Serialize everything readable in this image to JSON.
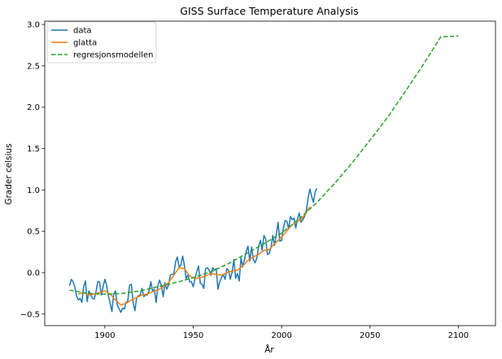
{
  "chart_data": {
    "type": "line",
    "title": "GISS Surface Temperature Analysis",
    "xlabel": "År",
    "ylabel": "Grader celsius",
    "xlim": [
      1866,
      2121
    ],
    "ylim": [
      -0.64,
      3.04
    ],
    "xticks": [
      1900,
      1950,
      2000,
      2050,
      2100
    ],
    "yticks": [
      -0.5,
      0.0,
      0.5,
      1.0,
      1.5,
      2.0,
      2.5,
      3.0
    ],
    "xtick_labels": [
      "1900",
      "1950",
      "2000",
      "2050",
      "2100"
    ],
    "ytick_labels": [
      "−0.5",
      "0.0",
      "0.5",
      "1.0",
      "1.5",
      "2.0",
      "2.5",
      "3.0"
    ],
    "grid": false,
    "legend_position": "top-left",
    "series": [
      {
        "name": "data",
        "color": "#1f77b4",
        "style": "solid",
        "x": [
          1880,
          1881,
          1882,
          1883,
          1884,
          1885,
          1886,
          1887,
          1888,
          1889,
          1890,
          1891,
          1892,
          1893,
          1894,
          1895,
          1896,
          1897,
          1898,
          1899,
          1900,
          1901,
          1902,
          1903,
          1904,
          1905,
          1906,
          1907,
          1908,
          1909,
          1910,
          1911,
          1912,
          1913,
          1914,
          1915,
          1916,
          1917,
          1918,
          1919,
          1920,
          1921,
          1922,
          1923,
          1924,
          1925,
          1926,
          1927,
          1928,
          1929,
          1930,
          1931,
          1932,
          1933,
          1934,
          1935,
          1936,
          1937,
          1938,
          1939,
          1940,
          1941,
          1942,
          1943,
          1944,
          1945,
          1946,
          1947,
          1948,
          1949,
          1950,
          1951,
          1952,
          1953,
          1954,
          1955,
          1956,
          1957,
          1958,
          1959,
          1960,
          1961,
          1962,
          1963,
          1964,
          1965,
          1966,
          1967,
          1968,
          1969,
          1970,
          1971,
          1972,
          1973,
          1974,
          1975,
          1976,
          1977,
          1978,
          1979,
          1980,
          1981,
          1982,
          1983,
          1984,
          1985,
          1986,
          1987,
          1988,
          1989,
          1990,
          1991,
          1992,
          1993,
          1994,
          1995,
          1996,
          1997,
          1998,
          1999,
          2000,
          2001,
          2002,
          2003,
          2004,
          2005,
          2006,
          2007,
          2008,
          2009,
          2010,
          2011,
          2012,
          2013,
          2014,
          2015,
          2016,
          2017,
          2018,
          2019,
          2020
        ],
        "y": [
          -0.16,
          -0.08,
          -0.11,
          -0.17,
          -0.28,
          -0.33,
          -0.31,
          -0.36,
          -0.17,
          -0.1,
          -0.35,
          -0.22,
          -0.27,
          -0.31,
          -0.32,
          -0.23,
          -0.11,
          -0.11,
          -0.27,
          -0.17,
          -0.08,
          -0.15,
          -0.28,
          -0.37,
          -0.47,
          -0.26,
          -0.22,
          -0.39,
          -0.43,
          -0.48,
          -0.43,
          -0.44,
          -0.36,
          -0.34,
          -0.15,
          -0.14,
          -0.36,
          -0.46,
          -0.3,
          -0.28,
          -0.27,
          -0.19,
          -0.29,
          -0.27,
          -0.27,
          -0.22,
          -0.11,
          -0.22,
          -0.2,
          -0.36,
          -0.16,
          -0.09,
          -0.16,
          -0.29,
          -0.12,
          -0.2,
          -0.15,
          -0.03,
          -0.02,
          -0.02,
          0.13,
          0.19,
          0.07,
          0.09,
          0.2,
          0.09,
          -0.07,
          -0.03,
          -0.11,
          -0.11,
          -0.17,
          -0.07,
          0.01,
          0.08,
          -0.13,
          -0.14,
          -0.19,
          0.05,
          0.06,
          0.03,
          -0.03,
          0.06,
          0.03,
          0.05,
          -0.2,
          -0.11,
          -0.06,
          -0.02,
          -0.08,
          0.05,
          0.03,
          -0.08,
          0.01,
          0.16,
          -0.07,
          -0.01,
          -0.1,
          0.18,
          0.07,
          0.16,
          0.26,
          0.32,
          0.14,
          0.31,
          0.16,
          0.12,
          0.18,
          0.32,
          0.39,
          0.27,
          0.45,
          0.41,
          0.22,
          0.23,
          0.31,
          0.45,
          0.33,
          0.46,
          0.61,
          0.38,
          0.39,
          0.54,
          0.63,
          0.62,
          0.53,
          0.68,
          0.64,
          0.66,
          0.54,
          0.65,
          0.72,
          0.61,
          0.64,
          0.68,
          0.75,
          0.9,
          1.01,
          0.92,
          0.85,
          0.98,
          1.02
        ]
      },
      {
        "name": "glatta",
        "color": "#ff7f0e",
        "style": "solid",
        "x": [
          1885,
          1888,
          1891,
          1894,
          1897,
          1900,
          1903,
          1906,
          1909,
          1912,
          1915,
          1918,
          1921,
          1924,
          1927,
          1930,
          1933,
          1936,
          1939,
          1942,
          1945,
          1948,
          1951,
          1954,
          1957,
          1960,
          1963,
          1966,
          1969,
          1972,
          1975,
          1978,
          1981,
          1984,
          1987,
          1990,
          1993,
          1996,
          1999,
          2002,
          2005,
          2008,
          2011,
          2014,
          2016
        ],
        "y": [
          -0.26,
          -0.24,
          -0.27,
          -0.26,
          -0.24,
          -0.22,
          -0.26,
          -0.33,
          -0.39,
          -0.37,
          -0.33,
          -0.3,
          -0.27,
          -0.26,
          -0.23,
          -0.21,
          -0.17,
          -0.12,
          -0.03,
          0.06,
          0.05,
          -0.04,
          -0.07,
          -0.06,
          -0.04,
          -0.01,
          -0.02,
          -0.03,
          0.0,
          0.02,
          0.03,
          0.08,
          0.15,
          0.19,
          0.22,
          0.27,
          0.28,
          0.35,
          0.41,
          0.48,
          0.56,
          0.61,
          0.64,
          0.73,
          0.8
        ]
      },
      {
        "name": "regresjonsmodellen",
        "color": "#2ca02c",
        "style": "dashed",
        "x": [
          1880,
          1890,
          1900,
          1910,
          1920,
          1930,
          1940,
          1950,
          1960,
          1970,
          1980,
          1990,
          2000,
          2010,
          2020,
          2030,
          2040,
          2050,
          2060,
          2070,
          2080,
          2090,
          2100
        ],
        "y": [
          -0.21,
          -0.25,
          -0.26,
          -0.25,
          -0.22,
          -0.17,
          -0.12,
          -0.06,
          0.01,
          0.11,
          0.23,
          0.35,
          0.48,
          0.65,
          0.85,
          1.08,
          1.33,
          1.6,
          1.88,
          2.19,
          2.51,
          2.85,
          2.86
        ]
      }
    ]
  }
}
